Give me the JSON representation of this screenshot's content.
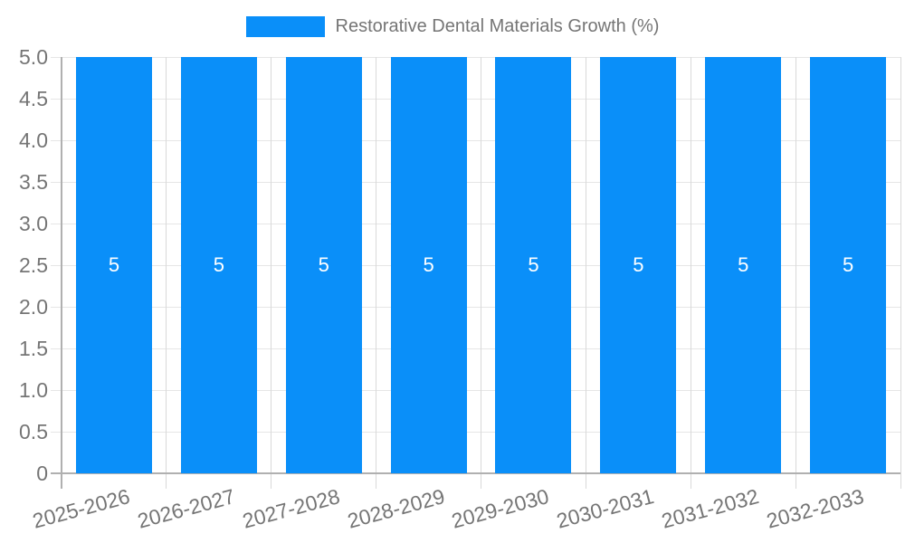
{
  "legend": {
    "label": "Restorative Dental Materials Growth (%)"
  },
  "chart_data": {
    "type": "bar",
    "title": "Restorative Dental Materials Growth (%)",
    "categories": [
      "2025-2026",
      "2026-2027",
      "2027-2028",
      "2028-2029",
      "2029-2030",
      "2030-2031",
      "2031-2032",
      "2032-2033"
    ],
    "values": [
      5,
      5,
      5,
      5,
      5,
      5,
      5,
      5
    ],
    "bar_value_labels": [
      "5",
      "5",
      "5",
      "5",
      "5",
      "5",
      "5",
      "5"
    ],
    "xlabel": "",
    "ylabel": "",
    "ylim": [
      0,
      5
    ],
    "ytick_labels": [
      "0",
      "0.5",
      "1.0",
      "1.5",
      "2.0",
      "2.5",
      "3.0",
      "3.5",
      "4.0",
      "4.5",
      "5.0"
    ],
    "grid": true,
    "legend_position": "top",
    "colors": {
      "bar": "#0a8ff9",
      "bar_label": "#ffffff",
      "axis_text": "#757575",
      "grid_horizontal": "#e6e6e6",
      "grid_vertical": "#d9d9d9",
      "axis_line": "#b0b0b0",
      "background": "#ffffff"
    }
  }
}
